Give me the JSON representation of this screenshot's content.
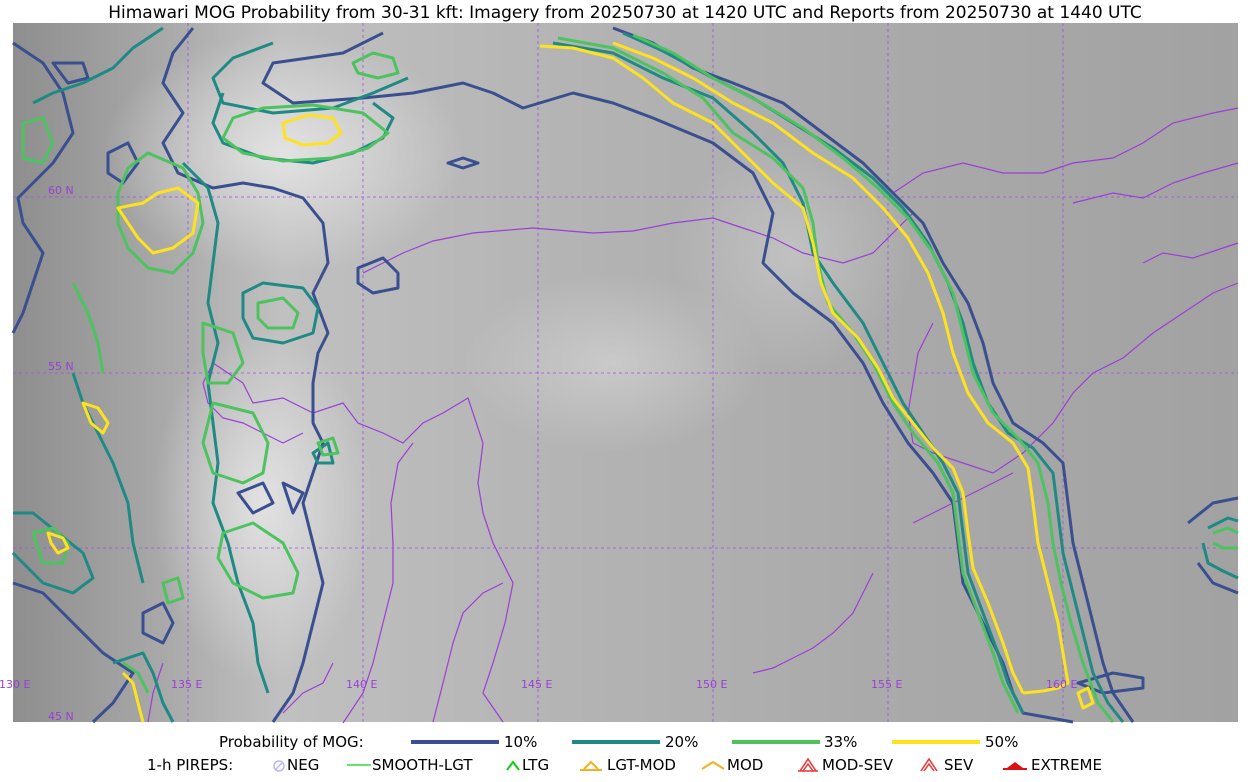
{
  "title": "Himawari MOG Probability from 30-31 kft: Imagery from 20250730 at 1420 UTC and Reports from 20250730 at 1440 UTC",
  "map": {
    "lat_labels": [
      "60 N",
      "55 N",
      "45 N"
    ],
    "lon_labels": [
      "130 E",
      "135 E",
      "140 E",
      "145 E",
      "150 E",
      "155 E",
      "160 E"
    ],
    "grid_color": "#a050e0",
    "coast_color": "#9a3fd6"
  },
  "legend": {
    "prob_label": "Probability of MOG:",
    "prob_items": [
      {
        "label": "10%",
        "color": "#3a4f8f"
      },
      {
        "label": "20%",
        "color": "#1f8a84"
      },
      {
        "label": "33%",
        "color": "#4cc35e"
      },
      {
        "label": "50%",
        "color": "#fde21f"
      }
    ],
    "pirep_label": "1-h PIREPS:",
    "pirep_items": [
      {
        "label": "NEG",
        "icon": "neg-circle-icon",
        "color": "#b8b8ff"
      },
      {
        "label": "SMOOTH-LGT",
        "icon": "line-icon",
        "color": "#33dd33"
      },
      {
        "label": "LTG",
        "icon": "caret-icon",
        "color": "#11cc11"
      },
      {
        "label": "LGT-MOD",
        "icon": "caret-bar-icon",
        "color": "#f5b020"
      },
      {
        "label": "MOD",
        "icon": "caret-icon",
        "color": "#f5b020"
      },
      {
        "label": "MOD-SEV",
        "icon": "double-caret-icon",
        "color": "#ee3333"
      },
      {
        "label": "SEV",
        "icon": "double-caret-icon",
        "color": "#ee3333"
      },
      {
        "label": "EXTREME",
        "icon": "filled-caret-icon",
        "color": "#dd1111"
      }
    ]
  }
}
